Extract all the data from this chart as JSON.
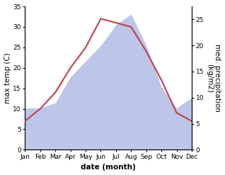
{
  "months": [
    "Jan",
    "Feb",
    "Mar",
    "Apr",
    "May",
    "Jun",
    "Jul",
    "Aug",
    "Sep",
    "Oct",
    "Nov",
    "Dec"
  ],
  "temp": [
    7,
    10,
    14,
    20,
    25,
    32,
    31,
    30,
    24,
    17,
    9,
    7
  ],
  "precip": [
    8,
    8,
    9,
    14,
    17,
    20,
    24,
    26,
    20,
    12,
    8,
    10
  ],
  "temp_color": "#c0404a",
  "precip_fill_color": "#bdc5e8",
  "temp_ylim": [
    0,
    35
  ],
  "precip_ylim": [
    0,
    27.5
  ],
  "ylabel_left": "max temp (C)",
  "ylabel_right": "med. precipitation\n(kg/m2)",
  "xlabel": "date (month)",
  "temp_yticks": [
    0,
    5,
    10,
    15,
    20,
    25,
    30,
    35
  ],
  "precip_yticks": [
    0,
    5,
    10,
    15,
    20,
    25
  ],
  "label_fontsize": 7.5,
  "tick_fontsize": 6.5
}
